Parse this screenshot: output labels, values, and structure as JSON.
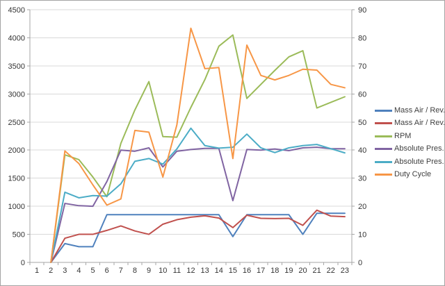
{
  "chart_data": {
    "type": "line",
    "title": "",
    "x_categories": [
      "1",
      "2",
      "3",
      "4",
      "5",
      "6",
      "7",
      "8",
      "9",
      "10",
      "11",
      "12",
      "13",
      "14",
      "15",
      "16",
      "17",
      "18",
      "19",
      "20",
      "21",
      "22",
      "23"
    ],
    "axes": {
      "left": {
        "min": 0,
        "max": 4500,
        "step": 500,
        "tick_labels": [
          "0",
          "500",
          "1000",
          "1500",
          "2000",
          "2500",
          "3000",
          "3500",
          "4000",
          "4500"
        ]
      },
      "right": {
        "min": 0,
        "max": 90,
        "step": 10,
        "tick_labels": [
          "0",
          "10",
          "20",
          "30",
          "40",
          "50",
          "60",
          "70",
          "80",
          "90"
        ]
      }
    },
    "grid": true,
    "legend_position": "right",
    "series": [
      {
        "name": "Mass Air / Rev.",
        "color": "#4F81BD",
        "axis": "right",
        "values": [
          null,
          0,
          6.7,
          5.6,
          5.6,
          17,
          17,
          17,
          17,
          17,
          17,
          17,
          17,
          17,
          9.2,
          17,
          17,
          17,
          17,
          10,
          17.5,
          17.5,
          17.5
        ]
      },
      {
        "name": "Mass Air / Rev.",
        "color": "#C0504D",
        "axis": "right",
        "values": [
          null,
          0,
          8.6,
          10,
          10,
          11.4,
          13,
          11.2,
          10,
          13.6,
          15.2,
          16.1,
          16.6,
          15.8,
          12.4,
          16.8,
          15.7,
          15.6,
          15.7,
          13.2,
          18.6,
          16.5,
          16.3
        ]
      },
      {
        "name": "RPM",
        "color": "#9BBB59",
        "axis": "left",
        "values": [
          null,
          0,
          1915,
          1830,
          1520,
          1170,
          2120,
          2715,
          3220,
          2240,
          2230,
          2760,
          3255,
          3850,
          4050,
          2920,
          3170,
          3420,
          3660,
          3770,
          2750,
          2850,
          2950
        ]
      },
      {
        "name": "Absolute Pres.",
        "color": "#8064A2",
        "axis": "right",
        "values": [
          null,
          0,
          21,
          20.2,
          20,
          28.8,
          40,
          39.6,
          40.8,
          34,
          39.6,
          40.2,
          40.6,
          40.6,
          22,
          40.2,
          40,
          40.4,
          39.8,
          40.8,
          41,
          40.5,
          40.5
        ]
      },
      {
        "name": "Absolute Pres.",
        "color": "#4BACC6",
        "axis": "right",
        "values": [
          null,
          0,
          25,
          23,
          23.8,
          23.6,
          28,
          36,
          37,
          35,
          40.4,
          47.8,
          41.6,
          40.7,
          41,
          45.7,
          40.8,
          39.1,
          40.8,
          41.6,
          42,
          40.5,
          39
        ]
      },
      {
        "name": "Duty Cycle",
        "color": "#F79646",
        "axis": "right",
        "values": [
          null,
          0,
          39.7,
          35.2,
          27.6,
          20.4,
          22.6,
          47,
          46.4,
          30.4,
          49,
          83.4,
          69,
          69.4,
          37,
          77.4,
          66.6,
          65,
          66.6,
          68.8,
          68.5,
          63.4,
          62.2
        ]
      }
    ],
    "colors": {
      "background": "#FFFFFF",
      "gridline": "#D9D9D9",
      "axis_line": "#A6A6A6",
      "tick_label": "#333333",
      "frame_border": "#A3A3A3"
    }
  }
}
